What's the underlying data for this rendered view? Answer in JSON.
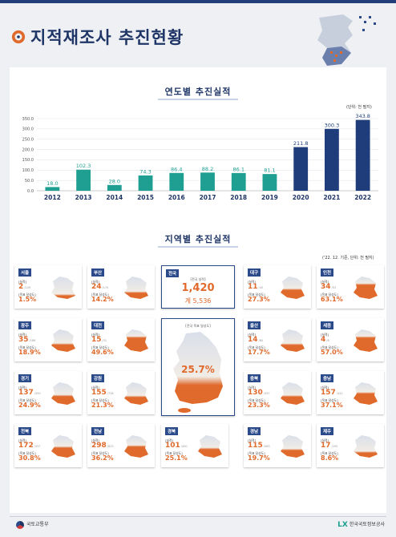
{
  "title": "지적재조사 추진현황",
  "section1_title": "연도별 추진실적",
  "section1_unit": "(단위: 천 필지)",
  "section2_title": "지역별 추진실적",
  "section2_unit": "('22. 12. 기준, 단위: 천 필지)",
  "colors": {
    "teal": "#1f9e92",
    "navy": "#1f3d7a",
    "orange": "#e06a2c"
  },
  "chart_data": {
    "type": "bar",
    "categories": [
      "2012",
      "2013",
      "2014",
      "2015",
      "2016",
      "2017",
      "2018",
      "2019",
      "2020",
      "2021",
      "2022"
    ],
    "values": [
      18.0,
      102.3,
      28.0,
      74.3,
      86.4,
      88.2,
      86.1,
      81.1,
      211.8,
      300.3,
      343.8
    ],
    "value_labels": [
      "18.0",
      "102.3",
      "28.0",
      "74.3",
      "86.4",
      "88.2",
      "86.1",
      "81.1",
      "211.8",
      "300.3",
      "343.8"
    ],
    "ylim": [
      0,
      350
    ],
    "yticks": [
      "0.0",
      "50.0",
      "100.0",
      "150.0",
      "200.0",
      "250.0",
      "300.0",
      "350.0"
    ],
    "grid": true
  },
  "national": {
    "label": "전국",
    "perf_caption": "[전국 실적]",
    "performance": "1,420",
    "total": "계 5,536",
    "rate_caption": "[전국 목표 달성도]",
    "rate": "25.7%",
    "rate_value": 25.7
  },
  "card_labels": {
    "perf": "[실적]",
    "rate": "[목표 달성도]"
  },
  "regions": [
    {
      "name": "서울",
      "value": "2",
      "target": "/149",
      "rate": "1.5%",
      "rate_value": 1.5
    },
    {
      "name": "부산",
      "value": "24",
      "target": "/170",
      "rate": "14.2%",
      "rate_value": 14.2
    },
    {
      "name": "대구",
      "value": "11",
      "target": "/40",
      "rate": "27.3%",
      "rate_value": 27.3
    },
    {
      "name": "인천",
      "value": "34",
      "target": "/53",
      "rate": "63.1%",
      "rate_value": 63.1
    },
    {
      "name": "광주",
      "value": "35",
      "target": "/186",
      "rate": "18.9%",
      "rate_value": 18.9
    },
    {
      "name": "대전",
      "value": "15",
      "target": "/31",
      "rate": "49.6%",
      "rate_value": 49.6
    },
    {
      "name": "울산",
      "value": "14",
      "target": "/80",
      "rate": "17.7%",
      "rate_value": 17.7
    },
    {
      "name": "세종",
      "value": "4",
      "target": "/8",
      "rate": "57.0%",
      "rate_value": 57.0
    },
    {
      "name": "경기",
      "value": "137",
      "target": "/550",
      "rate": "24.9%",
      "rate_value": 24.9
    },
    {
      "name": "강원",
      "value": "155",
      "target": "/728",
      "rate": "21.3%",
      "rate_value": 21.3
    },
    {
      "name": "충북",
      "value": "130",
      "target": "/557",
      "rate": "23.3%",
      "rate_value": 23.3
    },
    {
      "name": "충남",
      "value": "157",
      "target": "/422",
      "rate": "37.1%",
      "rate_value": 37.1
    },
    {
      "name": "전북",
      "value": "172",
      "target": "/557",
      "rate": "30.8%",
      "rate_value": 30.8
    },
    {
      "name": "전남",
      "value": "298",
      "target": "/823",
      "rate": "36.2%",
      "rate_value": 36.2
    },
    {
      "name": "경북",
      "value": "101",
      "target": "/400",
      "rate": "25.1%",
      "rate_value": 25.1
    },
    {
      "name": "경남",
      "value": "115",
      "target": "/583",
      "rate": "19.7%",
      "rate_value": 19.7
    },
    {
      "name": "제주",
      "value": "17",
      "target": "/200",
      "rate": "8.6%",
      "rate_value": 8.6
    }
  ],
  "footer": {
    "left": "국토교통부",
    "right_mark": "LX",
    "right": "한국국토정보공사"
  }
}
